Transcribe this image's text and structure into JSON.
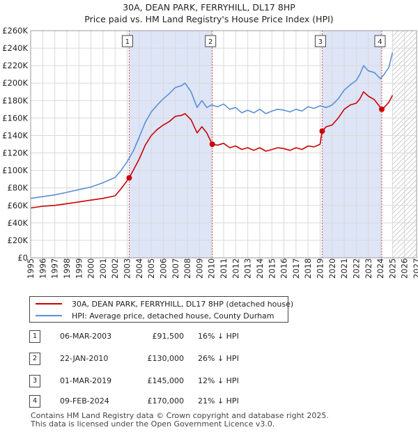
{
  "title": "30A, DEAN PARK, FERRYHILL, DL17 8HP",
  "subtitle": "Price paid vs. HM Land Registry's House Price Index (HPI)",
  "colors": {
    "property": "#cc0000",
    "hpi": "#5b8ed6",
    "shade": "#dde5f7",
    "grid": "#d9d9d9",
    "future_hatch": "#999999"
  },
  "chart_data": {
    "type": "line",
    "title": "30A, DEAN PARK, FERRYHILL, DL17 8HP",
    "xlim": [
      1995,
      2027
    ],
    "ylim": [
      0,
      260000
    ],
    "y_ticks": [
      0,
      20000,
      40000,
      60000,
      80000,
      100000,
      120000,
      140000,
      160000,
      180000,
      200000,
      220000,
      240000,
      260000
    ],
    "y_tick_labels": [
      "£0",
      "£20K",
      "£40K",
      "£60K",
      "£80K",
      "£100K",
      "£120K",
      "£140K",
      "£160K",
      "£180K",
      "£200K",
      "£220K",
      "£240K",
      "£260K"
    ],
    "x_ticks": [
      1995,
      1996,
      1997,
      1998,
      1999,
      2000,
      2001,
      2002,
      2003,
      2004,
      2005,
      2006,
      2007,
      2008,
      2009,
      2010,
      2011,
      2012,
      2013,
      2014,
      2015,
      2016,
      2017,
      2018,
      2019,
      2020,
      2021,
      2022,
      2023,
      2024,
      2025,
      2026,
      2027
    ],
    "x_tick_labels": [
      "1995",
      "1996",
      "1997",
      "1998",
      "1999",
      "2000",
      "2001",
      "2002",
      "2003",
      "2004",
      "2005",
      "2006",
      "2007",
      "2008",
      "2009",
      "2010",
      "2011",
      "2012",
      "2013",
      "2014",
      "2015",
      "2016",
      "2017",
      "2018",
      "2019",
      "2020",
      "2021",
      "2022",
      "2023",
      "2024",
      "2025",
      "2026",
      "2027"
    ],
    "forecast_start": 2025.0,
    "series": [
      {
        "name": "HPI: Average price, detached house, County Durham",
        "x": [
          1995.0,
          1996.0,
          1997.0,
          1998.0,
          1999.0,
          2000.0,
          2001.0,
          2002.0,
          2002.5,
          2003.0,
          2003.5,
          2004.0,
          2004.5,
          2005.0,
          2005.5,
          2006.0,
          2006.5,
          2007.0,
          2007.5,
          2007.8,
          2008.3,
          2008.8,
          2009.2,
          2009.6,
          2010.0,
          2010.5,
          2011.0,
          2011.5,
          2012.0,
          2012.5,
          2013.0,
          2013.5,
          2014.0,
          2014.5,
          2015.0,
          2015.5,
          2016.0,
          2016.5,
          2017.0,
          2017.5,
          2018.0,
          2018.5,
          2019.0,
          2019.5,
          2020.0,
          2020.5,
          2021.0,
          2021.5,
          2022.0,
          2022.3,
          2022.6,
          2023.0,
          2023.5,
          2024.0,
          2024.3,
          2024.7,
          2025.0
        ],
        "y": [
          68000,
          70000,
          72000,
          75000,
          78000,
          81000,
          86000,
          92000,
          100000,
          110000,
          122000,
          138000,
          155000,
          167000,
          175000,
          182000,
          188000,
          195000,
          197000,
          200000,
          190000,
          172000,
          180000,
          172000,
          175000,
          173000,
          176000,
          170000,
          172000,
          166000,
          169000,
          166000,
          170000,
          165000,
          168000,
          170000,
          169000,
          167000,
          170000,
          168000,
          173000,
          171000,
          174000,
          172000,
          175000,
          182000,
          192000,
          198000,
          203000,
          210000,
          220000,
          214000,
          212000,
          205000,
          210000,
          218000,
          235000
        ],
        "color": "#5b8ed6"
      },
      {
        "name": "30A, DEAN PARK, FERRYHILL, DL17 8HP (detached house)",
        "x": [
          1995.0,
          1996.0,
          1997.0,
          1998.0,
          1999.0,
          2000.0,
          2001.0,
          2002.0,
          2002.5,
          2003.17,
          2003.5,
          2004.0,
          2004.5,
          2005.0,
          2005.5,
          2006.0,
          2006.5,
          2007.0,
          2007.5,
          2007.8,
          2008.3,
          2008.8,
          2009.2,
          2009.6,
          2010.06,
          2010.5,
          2011.0,
          2011.5,
          2012.0,
          2012.5,
          2013.0,
          2013.5,
          2014.0,
          2014.5,
          2015.0,
          2015.5,
          2016.0,
          2016.5,
          2017.0,
          2017.5,
          2018.0,
          2018.5,
          2019.0,
          2019.17,
          2019.5,
          2020.0,
          2020.5,
          2021.0,
          2021.5,
          2022.0,
          2022.3,
          2022.6,
          2023.0,
          2023.5,
          2024.11,
          2024.3,
          2024.7,
          2025.0
        ],
        "y": [
          57000,
          59000,
          60000,
          62000,
          64000,
          66000,
          68000,
          71000,
          79000,
          91500,
          100000,
          113000,
          129000,
          140000,
          147000,
          152000,
          156000,
          162000,
          163000,
          165000,
          158000,
          143000,
          150000,
          143000,
          130000,
          129000,
          131000,
          126000,
          128000,
          124000,
          126000,
          123000,
          126000,
          122000,
          124000,
          126000,
          125000,
          123000,
          126000,
          124000,
          128000,
          127000,
          130000,
          145000,
          150000,
          152000,
          160000,
          170000,
          175000,
          177000,
          182000,
          190000,
          185000,
          181000,
          170000,
          172000,
          178000,
          186000
        ],
        "color": "#cc0000"
      }
    ],
    "sales": [
      {
        "num": "1",
        "date": "06-MAR-2003",
        "x": 2003.17,
        "price": 91500,
        "price_label": "£91,500",
        "hpi_diff": "16% ↓ HPI"
      },
      {
        "num": "2",
        "date": "22-JAN-2010",
        "x": 2010.06,
        "price": 130000,
        "price_label": "£130,000",
        "hpi_diff": "26% ↓ HPI"
      },
      {
        "num": "3",
        "date": "01-MAR-2019",
        "x": 2019.17,
        "price": 145000,
        "price_label": "£145,000",
        "hpi_diff": "12% ↓ HPI"
      },
      {
        "num": "4",
        "date": "09-FEB-2024",
        "x": 2024.11,
        "price": 170000,
        "price_label": "£170,000",
        "hpi_diff": "21% ↓ HPI"
      }
    ]
  },
  "legend": {
    "property_label": "30A, DEAN PARK, FERRYHILL, DL17 8HP (detached house)",
    "hpi_label": "HPI: Average price, detached house, County Durham"
  },
  "footer": {
    "line1": "Contains HM Land Registry data © Crown copyright and database right 2025.",
    "line2": "This data is licensed under the Open Government Licence v3.0."
  }
}
